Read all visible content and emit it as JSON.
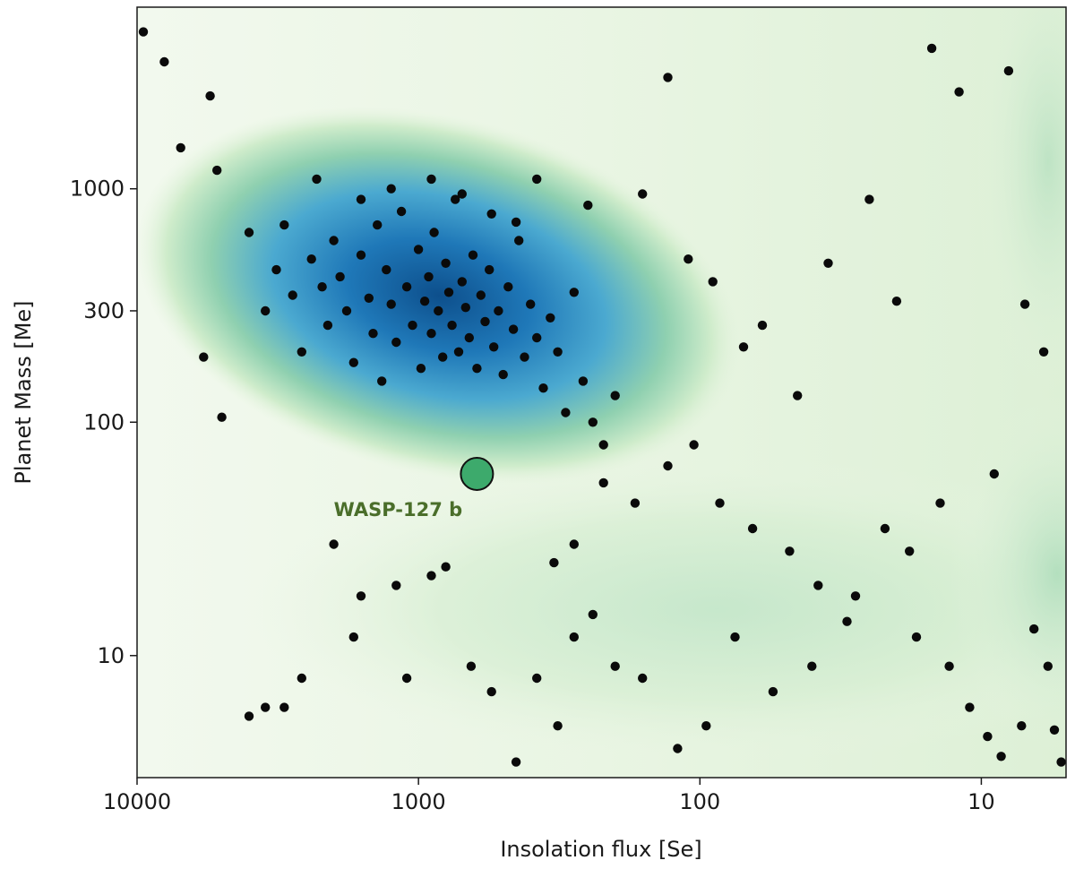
{
  "chart_data": {
    "type": "scatter",
    "title": "",
    "xlabel": "Insolation flux [Se]",
    "ylabel": "Planet Mass [Me]",
    "xscale": "log",
    "yscale": "log",
    "x_axis_reversed": true,
    "xlim": [
      10000,
      5
    ],
    "ylim": [
      3,
      6000
    ],
    "xticks": [
      10000,
      1000,
      100,
      10
    ],
    "xtick_labels": [
      "10000",
      "1000",
      "100",
      "10"
    ],
    "yticks": [
      10,
      100,
      300,
      1000
    ],
    "ytick_labels": [
      "10",
      "100",
      "300",
      "1000"
    ],
    "grid": false,
    "legend": "none",
    "background": "2D kernel density estimate (shaded green to blue, darkest near ~1000 Se, ~300 Me)",
    "colors": {
      "points": "#0a0a0a",
      "highlight": "#3daa6c",
      "annotation": "#4a6e2a",
      "density_low": "#eef7e8",
      "density_mid": "#8fd0b0",
      "density_high": "#0d4f8c"
    },
    "highlight": {
      "name": "WASP-127 b",
      "x": 620,
      "y": 60
    },
    "points": [
      [
        9500,
        4700
      ],
      [
        8000,
        3500
      ],
      [
        5500,
        2500
      ],
      [
        4000,
        650
      ],
      [
        3500,
        300
      ],
      [
        3200,
        450
      ],
      [
        3000,
        700
      ],
      [
        2800,
        350
      ],
      [
        2600,
        200
      ],
      [
        2400,
        500
      ],
      [
        2200,
        380
      ],
      [
        2100,
        260
      ],
      [
        2000,
        600
      ],
      [
        1900,
        420
      ],
      [
        1800,
        300
      ],
      [
        1700,
        180
      ],
      [
        1600,
        520
      ],
      [
        1500,
        340
      ],
      [
        1450,
        240
      ],
      [
        1400,
        700
      ],
      [
        1350,
        150
      ],
      [
        1300,
        450
      ],
      [
        1250,
        320
      ],
      [
        1200,
        220
      ],
      [
        1150,
        800
      ],
      [
        1100,
        380
      ],
      [
        1050,
        260
      ],
      [
        1000,
        550
      ],
      [
        980,
        170
      ],
      [
        950,
        330
      ],
      [
        920,
        420
      ],
      [
        900,
        240
      ],
      [
        880,
        650
      ],
      [
        850,
        300
      ],
      [
        820,
        190
      ],
      [
        800,
        480
      ],
      [
        780,
        360
      ],
      [
        760,
        260
      ],
      [
        740,
        900
      ],
      [
        720,
        200
      ],
      [
        700,
        400
      ],
      [
        680,
        310
      ],
      [
        660,
        230
      ],
      [
        640,
        520
      ],
      [
        620,
        170
      ],
      [
        600,
        350
      ],
      [
        580,
        270
      ],
      [
        560,
        450
      ],
      [
        540,
        210
      ],
      [
        520,
        300
      ],
      [
        500,
        160
      ],
      [
        480,
        380
      ],
      [
        460,
        250
      ],
      [
        440,
        600
      ],
      [
        420,
        190
      ],
      [
        400,
        320
      ],
      [
        380,
        230
      ],
      [
        360,
        140
      ],
      [
        340,
        280
      ],
      [
        320,
        200
      ],
      [
        300,
        110
      ],
      [
        280,
        360
      ],
      [
        260,
        150
      ],
      [
        240,
        100
      ],
      [
        220,
        80
      ],
      [
        200,
        130
      ],
      [
        1250,
        1000
      ],
      [
        900,
        1100
      ],
      [
        700,
        950
      ],
      [
        550,
        780
      ],
      [
        450,
        720
      ],
      [
        1600,
        900
      ],
      [
        2300,
        1100
      ],
      [
        5200,
        1200
      ],
      [
        7000,
        1500
      ],
      [
        380,
        1100
      ],
      [
        250,
        850
      ],
      [
        160,
        950
      ],
      [
        130,
        3000
      ],
      [
        110,
        500
      ],
      [
        90,
        400
      ],
      [
        70,
        210
      ],
      [
        60,
        260
      ],
      [
        45,
        130
      ],
      [
        35,
        480
      ],
      [
        25,
        900
      ],
      [
        20,
        330
      ],
      [
        15,
        4000
      ],
      [
        12,
        2600
      ],
      [
        8,
        3200
      ],
      [
        7,
        320
      ],
      [
        6,
        200
      ],
      [
        9,
        60
      ],
      [
        14,
        45
      ],
      [
        18,
        28
      ],
      [
        22,
        35
      ],
      [
        30,
        14
      ],
      [
        40,
        9
      ],
      [
        55,
        7
      ],
      [
        75,
        12
      ],
      [
        95,
        5
      ],
      [
        120,
        4
      ],
      [
        160,
        8
      ],
      [
        200,
        9
      ],
      [
        240,
        15
      ],
      [
        280,
        12
      ],
      [
        320,
        5
      ],
      [
        380,
        8
      ],
      [
        450,
        3.5
      ],
      [
        550,
        7
      ],
      [
        650,
        9
      ],
      [
        800,
        24
      ],
      [
        900,
        22
      ],
      [
        1200,
        20
      ],
      [
        1600,
        18
      ],
      [
        2000,
        30
      ],
      [
        2600,
        8
      ],
      [
        3000,
        6
      ],
      [
        3500,
        6
      ],
      [
        4000,
        5.5
      ],
      [
        5000,
        105
      ],
      [
        5800,
        190
      ],
      [
        1700,
        12
      ],
      [
        1100,
        8
      ],
      [
        330,
        25
      ],
      [
        280,
        30
      ],
      [
        220,
        55
      ],
      [
        170,
        45
      ],
      [
        130,
        65
      ],
      [
        105,
        80
      ],
      [
        85,
        45
      ],
      [
        65,
        35
      ],
      [
        48,
        28
      ],
      [
        38,
        20
      ],
      [
        28,
        18
      ],
      [
        17,
        12
      ],
      [
        13,
        9
      ],
      [
        11,
        6
      ],
      [
        9.5,
        4.5
      ],
      [
        8.5,
        3.7
      ],
      [
        7.2,
        5
      ],
      [
        6.5,
        13
      ],
      [
        5.8,
        9
      ],
      [
        5.5,
        4.8
      ],
      [
        5.2,
        3.5
      ]
    ]
  },
  "annotation_label": "WASP-127 b"
}
